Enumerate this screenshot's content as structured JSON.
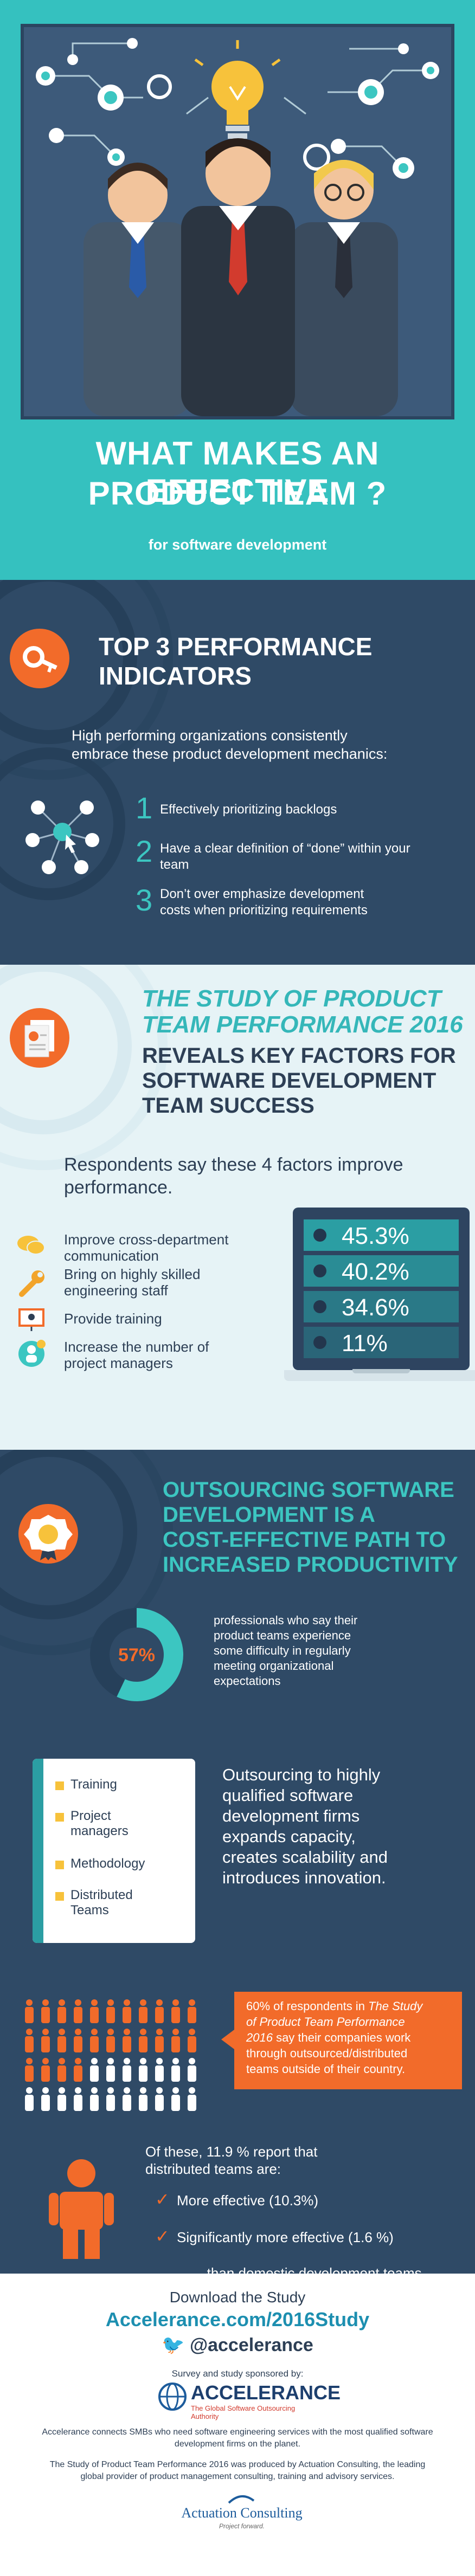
{
  "colors": {
    "teal": "#35c1bf",
    "navy": "#2f4a66",
    "deep": "#23364d",
    "orange": "#f26b2a",
    "yellow": "#f7c23b",
    "panel": "#e6f3f6"
  },
  "hero": {
    "title_line1": "WHAT MAKES AN EFFECTIVE",
    "title_line2": "PRODUCT TEAM ?",
    "subtitle": "for software development"
  },
  "indicators": {
    "heading_line1": "TOP 3 PERFORMANCE",
    "heading_line2": "INDICATORS",
    "intro_line1": "High performing organizations consistently",
    "intro_line2": "embrace these product development mechanics:",
    "items": [
      {
        "num": "1",
        "line1": "Effectively prioritizing backlogs",
        "line2": ""
      },
      {
        "num": "2",
        "line1": "Have a clear definition of “done” within your",
        "line2": "team"
      },
      {
        "num": "3",
        "line1": "Don’t over emphasize development",
        "line2": "costs when prioritizing requirements"
      }
    ]
  },
  "study": {
    "title_line1": "THE STUDY OF PRODUCT",
    "title_line2": "TEAM PERFORMANCE 2016",
    "sub_line1": "REVEALS KEY FACTORS FOR",
    "sub_line2": "SOFTWARE DEVELOPMENT",
    "sub_line3": "TEAM SUCCESS",
    "respond_line1": "Respondents say these 4 factors improve",
    "respond_line2": "performance.",
    "factors": [
      {
        "line1": "Improve cross-department",
        "line2": "communication"
      },
      {
        "line1": "Bring on highly skilled",
        "line2": "engineering staff"
      },
      {
        "line1": "Provide training",
        "line2": ""
      },
      {
        "line1": "Increase the number of",
        "line2": "project managers"
      }
    ],
    "percents": [
      "45.3%",
      "40.2%",
      "34.6%",
      "11%"
    ]
  },
  "outsourcing": {
    "heading_line1": "OUTSOURCING SOFTWARE",
    "heading_line2": "DEVELOPMENT IS A",
    "heading_line3": "COST-EFFECTIVE PATH TO",
    "heading_line4": "INCREASED PRODUCTIVITY",
    "donut_value": 57,
    "donut_label": "57%",
    "donut_text": [
      "professionals who say their",
      "product teams experience",
      "some difficulty in regularly",
      "meeting organizational",
      "expectations"
    ],
    "checklist": [
      {
        "line1": "Training",
        "line2": ""
      },
      {
        "line1": "Project",
        "line2": "managers"
      },
      {
        "line1": "Methodology",
        "line2": ""
      },
      {
        "line1": "Distributed",
        "line2": "Teams"
      }
    ],
    "checklist_text": [
      "Outsourcing to highly",
      "qualified software",
      "development firms",
      "expands capacity,",
      "creates scalability and",
      "introduces innovation."
    ],
    "callout_lines": [
      {
        "a": "60% of respondents in ",
        "b": "The Study"
      },
      {
        "a": "",
        "b": "of Product Team Performance"
      },
      {
        "a": " say their companies work",
        "b": "2016"
      },
      {
        "a": "through outsourced/distributed",
        "b": ""
      },
      {
        "a": "teams outside of their country.",
        "b": ""
      }
    ],
    "of_these_line1": "Of these, 11.9 % report that",
    "of_these_line2": "distributed teams are:",
    "more_effective": "More effective (10.3%)",
    "sig_more": "Significantly more effective (1.6 %)",
    "than_domestic": "...than domestic development teams."
  },
  "footer": {
    "download": "Download the Study",
    "url": "Accelerance.com/2016Study",
    "twitter": "@accelerance",
    "sponsored": "Survey and study sponsored by:",
    "brand": "ACCELERANCE",
    "brand_tag": "The Global Software Outsourcing Authority",
    "connects_line1": "Accelerance connects SMBs who need software engineering services with the most qualified software",
    "connects_line2": "development firms on the planet.",
    "produced_line1": "The Study of Product Team Performance 2016 was produced by Actuation Consulting, the leading",
    "produced_line2": "global provider of product management consulting, training and advisory services.",
    "actuation": "Actuation Consulting",
    "actuation_tag": "Project forward."
  }
}
